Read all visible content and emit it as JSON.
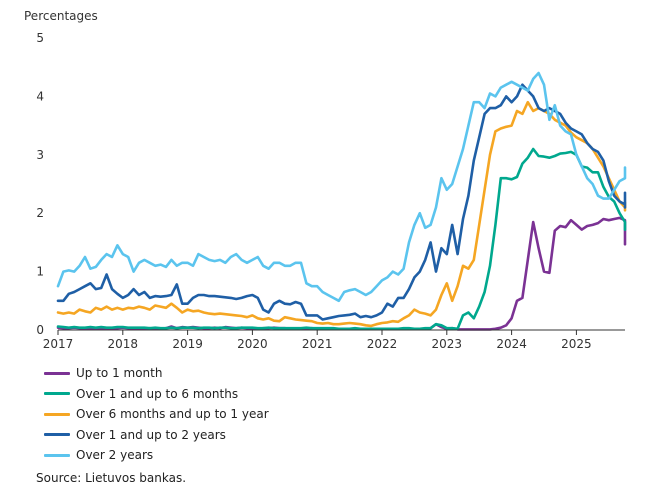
{
  "chart_data": {
    "type": "line",
    "ylabel": "Percentages",
    "ylim": [
      0,
      5
    ],
    "yticks": [
      "0",
      "1",
      "2",
      "3",
      "4",
      "5"
    ],
    "x_start": 2017.0,
    "x_end": 2025.75,
    "x_step": 0.08333,
    "xticks": [
      "2017",
      "2018",
      "2019",
      "2020",
      "2021",
      "2022",
      "2023",
      "2024",
      "2025"
    ],
    "grid": false,
    "legend_position": "bottom",
    "series": [
      {
        "name": "Up to 1 month",
        "color": "#7b3294",
        "values": [
          0.04,
          0.03,
          0.03,
          0.04,
          0.03,
          0.03,
          0.02,
          0.03,
          0.03,
          0.02,
          0.03,
          0.03,
          0.04,
          0.03,
          0.02,
          0.03,
          0.02,
          0.03,
          0.02,
          0.02,
          0.03,
          0.06,
          0.03,
          0.05,
          0.04,
          0.05,
          0.04,
          0.03,
          0.03,
          0.04,
          0.03,
          0.05,
          0.04,
          0.03,
          0.04,
          0.03,
          0.03,
          0.02,
          0.03,
          0.03,
          0.04,
          0.03,
          0.03,
          0.02,
          0.02,
          0.02,
          0.02,
          0.03,
          0.02,
          0.02,
          0.02,
          0.02,
          0.02,
          0.02,
          0.02,
          0.02,
          0.02,
          0.02,
          0.02,
          0.02,
          0.02,
          0.02,
          0.02,
          0.02,
          0.02,
          0.02,
          0.02,
          0.02,
          0.02,
          0.03,
          0.1,
          0.05,
          0.02,
          0.03,
          0.01,
          0.01,
          0.01,
          0.01,
          0.01,
          0.01,
          0.01,
          0.02,
          0.04,
          0.08,
          0.2,
          0.5,
          0.55,
          1.2,
          1.85,
          1.4,
          1.0,
          0.98,
          1.7,
          1.78,
          1.76,
          1.88,
          1.8,
          1.72,
          1.78,
          1.8,
          1.83,
          1.9,
          1.88,
          1.9,
          1.92,
          1.88,
          1.75,
          1.5,
          1.47,
          1.48
        ]
      },
      {
        "name": "Over 1 and up to 6 months",
        "color": "#00a88e",
        "values": [
          0.06,
          0.05,
          0.04,
          0.05,
          0.04,
          0.04,
          0.05,
          0.04,
          0.05,
          0.04,
          0.04,
          0.05,
          0.05,
          0.04,
          0.04,
          0.04,
          0.04,
          0.03,
          0.04,
          0.03,
          0.03,
          0.04,
          0.03,
          0.04,
          0.04,
          0.04,
          0.03,
          0.04,
          0.04,
          0.03,
          0.04,
          0.04,
          0.03,
          0.03,
          0.04,
          0.04,
          0.04,
          0.03,
          0.03,
          0.04,
          0.03,
          0.03,
          0.03,
          0.03,
          0.03,
          0.03,
          0.04,
          0.03,
          0.03,
          0.03,
          0.03,
          0.03,
          0.02,
          0.02,
          0.02,
          0.03,
          0.02,
          0.02,
          0.02,
          0.02,
          0.02,
          0.02,
          0.02,
          0.02,
          0.03,
          0.03,
          0.02,
          0.02,
          0.03,
          0.03,
          0.1,
          0.08,
          0.03,
          0.03,
          0.02,
          0.25,
          0.3,
          0.2,
          0.4,
          0.65,
          1.1,
          1.8,
          2.6,
          2.6,
          2.58,
          2.62,
          2.85,
          2.95,
          3.1,
          2.98,
          2.97,
          2.95,
          2.98,
          3.02,
          3.03,
          3.05,
          3.0,
          2.8,
          2.78,
          2.7,
          2.7,
          2.45,
          2.28,
          2.2,
          2.0,
          1.85,
          1.8,
          1.78,
          1.75,
          1.72
        ]
      },
      {
        "name": "Over 6 months and up to 1 year",
        "color": "#f5a623",
        "values": [
          0.3,
          0.28,
          0.3,
          0.28,
          0.35,
          0.32,
          0.3,
          0.38,
          0.35,
          0.4,
          0.35,
          0.38,
          0.35,
          0.38,
          0.37,
          0.4,
          0.38,
          0.35,
          0.42,
          0.4,
          0.38,
          0.45,
          0.38,
          0.3,
          0.35,
          0.32,
          0.33,
          0.3,
          0.28,
          0.27,
          0.28,
          0.27,
          0.26,
          0.25,
          0.24,
          0.22,
          0.25,
          0.2,
          0.18,
          0.2,
          0.16,
          0.15,
          0.22,
          0.2,
          0.18,
          0.17,
          0.16,
          0.15,
          0.12,
          0.11,
          0.12,
          0.1,
          0.1,
          0.11,
          0.12,
          0.11,
          0.1,
          0.08,
          0.07,
          0.1,
          0.12,
          0.13,
          0.15,
          0.14,
          0.2,
          0.25,
          0.35,
          0.3,
          0.28,
          0.25,
          0.35,
          0.6,
          0.8,
          0.5,
          0.75,
          1.1,
          1.05,
          1.2,
          1.8,
          2.4,
          3.0,
          3.4,
          3.45,
          3.48,
          3.5,
          3.75,
          3.7,
          3.9,
          3.75,
          3.8,
          3.75,
          3.7,
          3.6,
          3.55,
          3.5,
          3.38,
          3.3,
          3.25,
          3.2,
          3.1,
          2.95,
          2.8,
          2.6,
          2.4,
          2.2,
          2.1,
          2.08,
          2.05,
          2.12,
          2.18
        ]
      },
      {
        "name": "Over 1 and up to 2 years",
        "color": "#1f5fa6",
        "values": [
          0.5,
          0.5,
          0.62,
          0.65,
          0.7,
          0.75,
          0.8,
          0.7,
          0.72,
          0.95,
          0.7,
          0.62,
          0.55,
          0.6,
          0.7,
          0.6,
          0.65,
          0.55,
          0.58,
          0.57,
          0.58,
          0.6,
          0.78,
          0.45,
          0.45,
          0.55,
          0.6,
          0.6,
          0.58,
          0.58,
          0.57,
          0.56,
          0.55,
          0.53,
          0.55,
          0.58,
          0.6,
          0.55,
          0.35,
          0.3,
          0.45,
          0.5,
          0.45,
          0.44,
          0.48,
          0.45,
          0.25,
          0.25,
          0.25,
          0.18,
          0.2,
          0.22,
          0.24,
          0.25,
          0.26,
          0.28,
          0.22,
          0.24,
          0.22,
          0.25,
          0.3,
          0.45,
          0.4,
          0.55,
          0.55,
          0.7,
          0.9,
          1.0,
          1.2,
          1.5,
          1.0,
          1.4,
          1.3,
          1.8,
          1.3,
          1.9,
          2.3,
          2.9,
          3.3,
          3.7,
          3.8,
          3.8,
          3.85,
          4.0,
          3.9,
          4.0,
          4.2,
          4.1,
          4.0,
          3.8,
          3.75,
          3.8,
          3.75,
          3.7,
          3.55,
          3.45,
          3.4,
          3.35,
          3.2,
          3.1,
          3.05,
          2.9,
          2.55,
          2.3,
          2.2,
          2.15,
          2.2,
          2.35,
          2.1,
          2.1
        ]
      },
      {
        "name": "Over 2 years",
        "color": "#5bc4ee",
        "values": [
          0.75,
          1.0,
          1.02,
          1.0,
          1.1,
          1.25,
          1.05,
          1.08,
          1.2,
          1.3,
          1.25,
          1.45,
          1.3,
          1.25,
          1.0,
          1.15,
          1.2,
          1.15,
          1.1,
          1.12,
          1.08,
          1.2,
          1.1,
          1.15,
          1.15,
          1.1,
          1.3,
          1.25,
          1.2,
          1.18,
          1.2,
          1.15,
          1.25,
          1.3,
          1.2,
          1.15,
          1.2,
          1.25,
          1.1,
          1.05,
          1.15,
          1.15,
          1.1,
          1.1,
          1.15,
          1.15,
          0.8,
          0.75,
          0.75,
          0.65,
          0.6,
          0.55,
          0.5,
          0.65,
          0.68,
          0.7,
          0.65,
          0.6,
          0.65,
          0.75,
          0.85,
          0.9,
          1.0,
          0.95,
          1.05,
          1.5,
          1.8,
          2.0,
          1.75,
          1.8,
          2.1,
          2.6,
          2.4,
          2.5,
          2.8,
          3.1,
          3.5,
          3.9,
          3.9,
          3.8,
          4.05,
          4.0,
          4.15,
          4.2,
          4.25,
          4.2,
          4.15,
          4.1,
          4.3,
          4.4,
          4.2,
          3.6,
          3.85,
          3.5,
          3.4,
          3.35,
          3.0,
          2.8,
          2.6,
          2.5,
          2.3,
          2.25,
          2.25,
          2.4,
          2.55,
          2.6,
          2.65,
          2.7,
          2.75,
          2.78
        ]
      }
    ]
  },
  "source": "Source: Lietuvos bankas."
}
